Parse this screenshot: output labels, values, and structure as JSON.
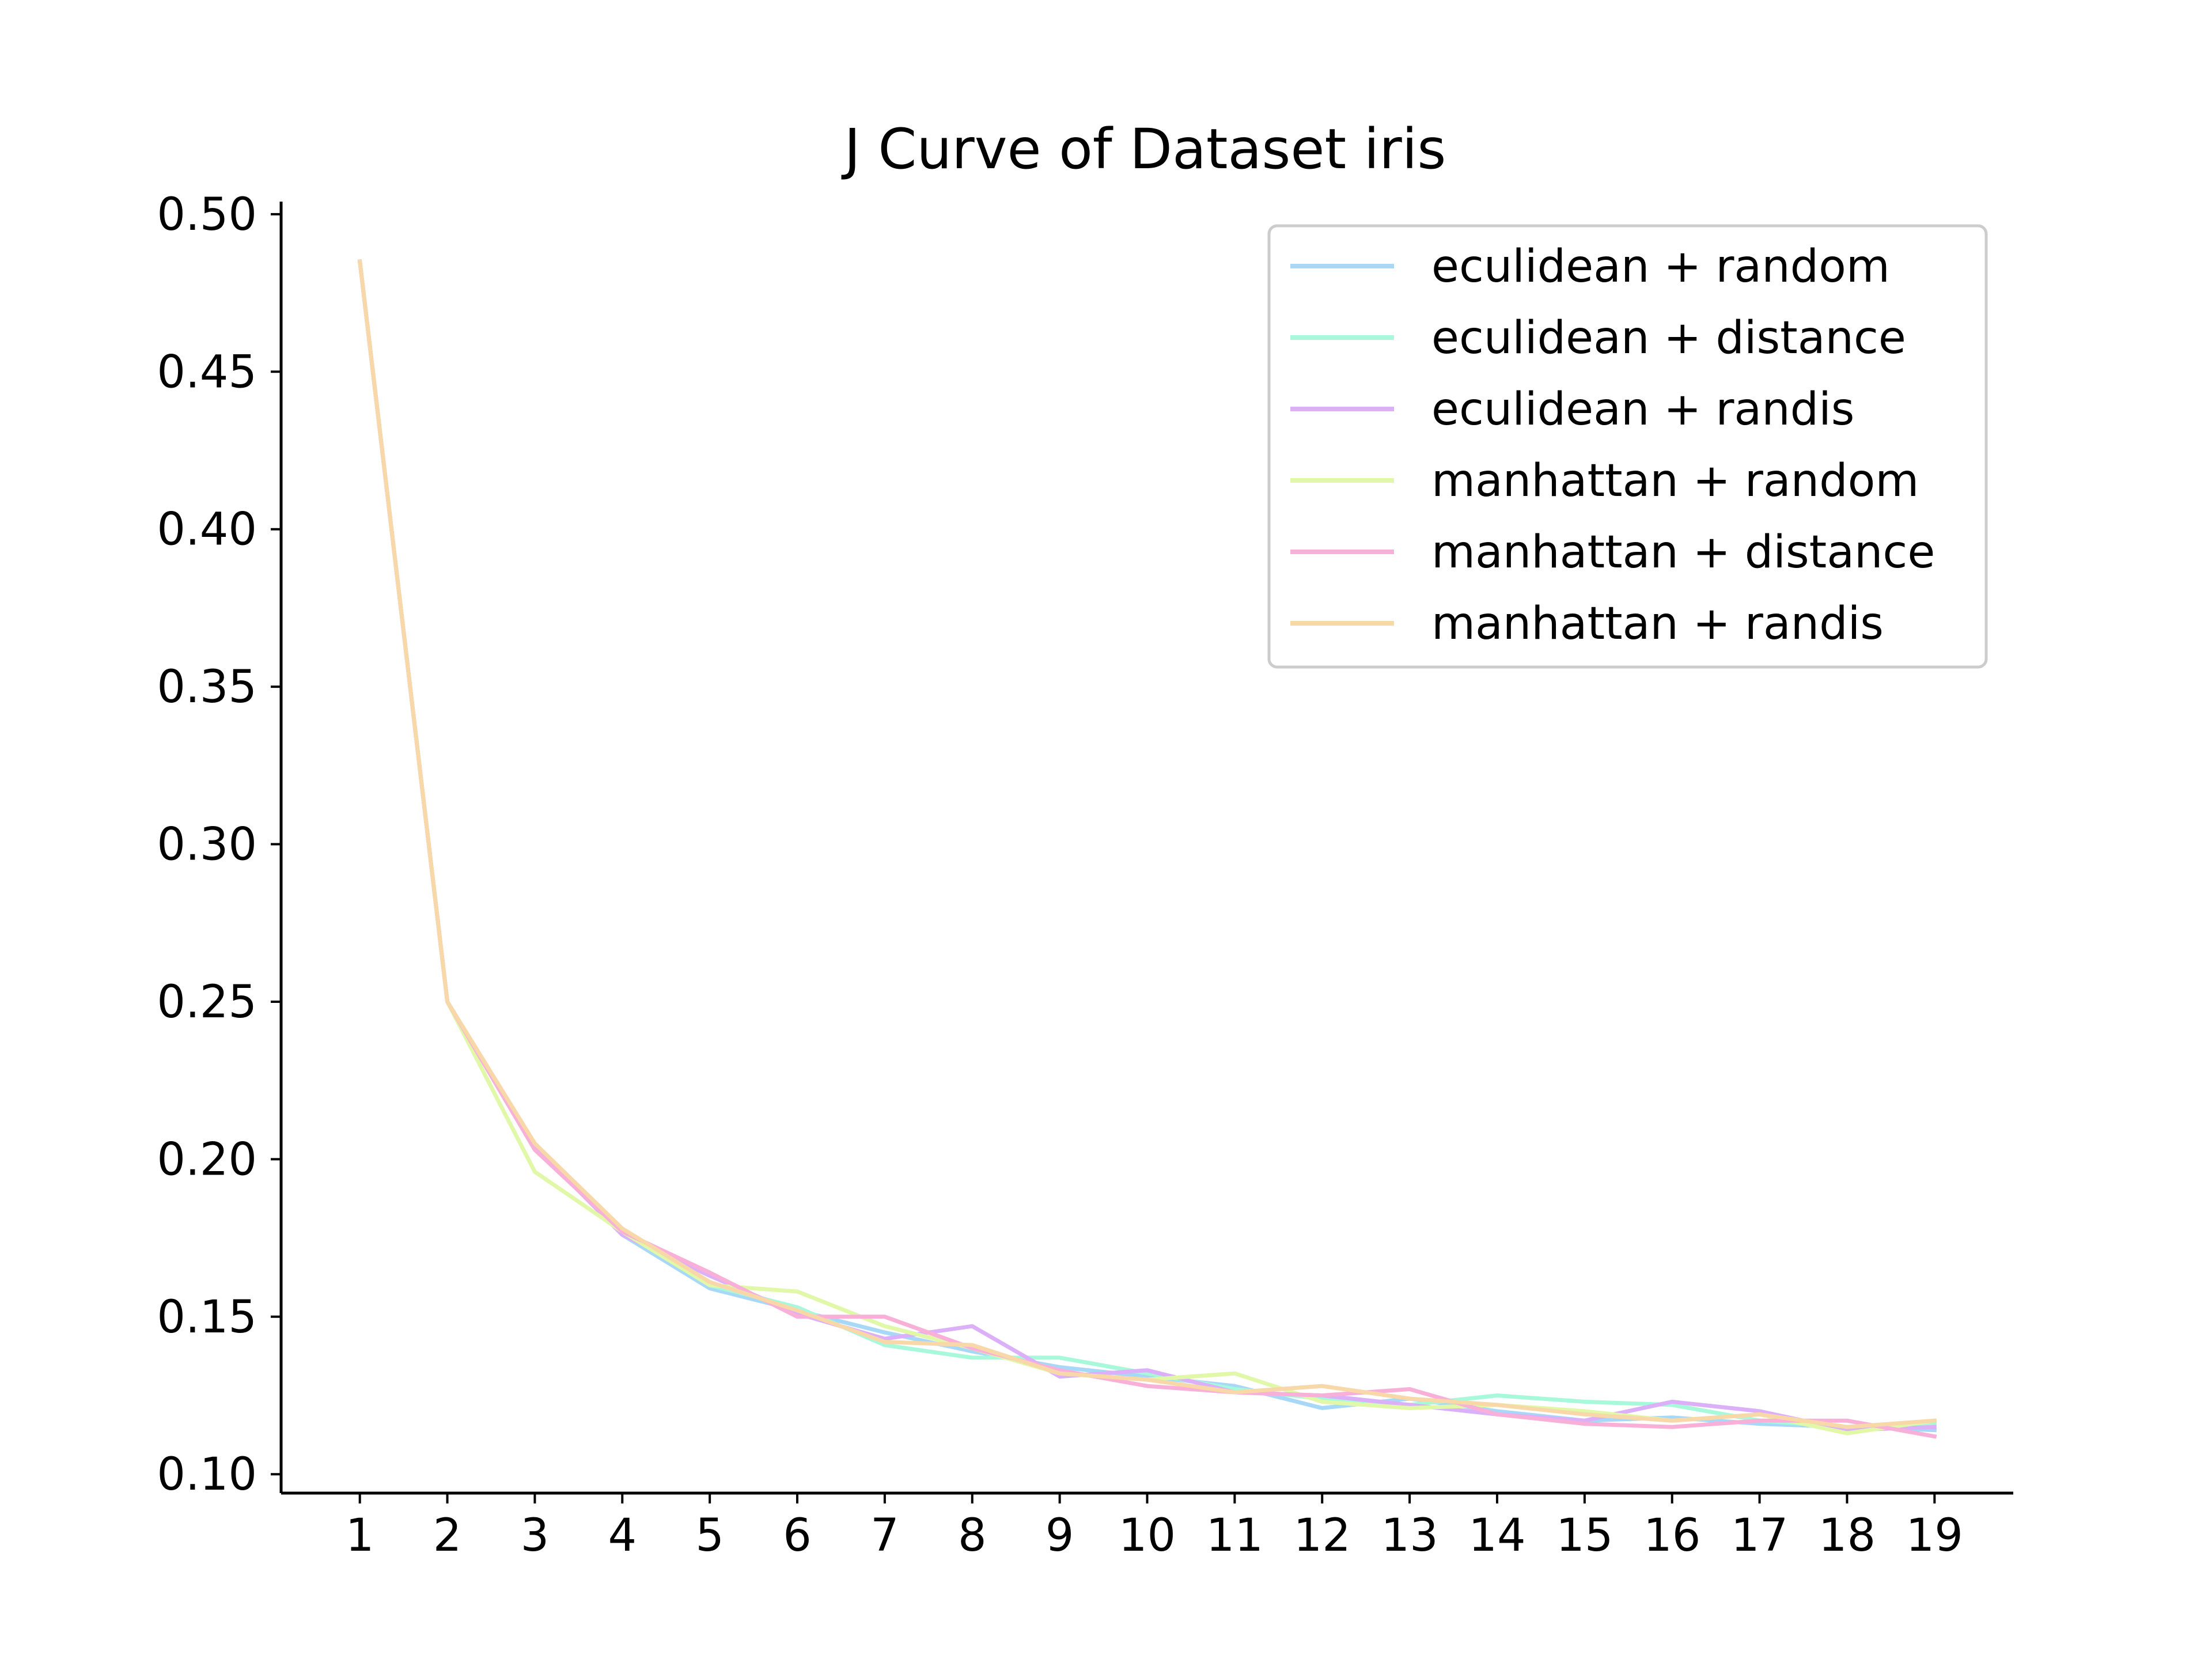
{
  "chart_data": {
    "type": "line",
    "title": "J Curve of Dataset iris",
    "xlabel": "",
    "ylabel": "",
    "x": [
      1,
      2,
      3,
      4,
      5,
      6,
      7,
      8,
      9,
      10,
      11,
      12,
      13,
      14,
      15,
      16,
      17,
      18,
      19
    ],
    "xlim": [
      0.1,
      19.9
    ],
    "ylim": [
      0.094,
      0.504
    ],
    "x_ticks": [
      "1",
      "2",
      "3",
      "4",
      "5",
      "6",
      "7",
      "8",
      "9",
      "10",
      "11",
      "12",
      "13",
      "14",
      "15",
      "16",
      "17",
      "18",
      "19"
    ],
    "y_ticks": [
      0.1,
      0.15,
      0.2,
      0.25,
      0.3,
      0.35,
      0.4,
      0.45,
      0.5
    ],
    "y_tick_labels": [
      "0.10",
      "0.15",
      "0.20",
      "0.25",
      "0.30",
      "0.35",
      "0.40",
      "0.45",
      "0.50"
    ],
    "grid": false,
    "legend_position": "top-right",
    "series": [
      {
        "name": "eculidean + random",
        "color": "#a8d8f8",
        "values": [
          0.485,
          0.25,
          0.204,
          0.176,
          0.159,
          0.152,
          0.145,
          0.139,
          0.134,
          0.131,
          0.128,
          0.121,
          0.124,
          0.12,
          0.117,
          0.118,
          0.116,
          0.115,
          0.114
        ]
      },
      {
        "name": "eculidean + distance",
        "color": "#a8f8dc",
        "values": [
          0.485,
          0.25,
          0.203,
          0.178,
          0.16,
          0.153,
          0.141,
          0.137,
          0.137,
          0.132,
          0.127,
          0.124,
          0.122,
          0.125,
          0.123,
          0.122,
          0.117,
          0.115,
          0.116
        ]
      },
      {
        "name": "eculidean + randis",
        "color": "#dcb0f8",
        "values": [
          0.485,
          0.25,
          0.204,
          0.176,
          0.163,
          0.151,
          0.143,
          0.147,
          0.131,
          0.133,
          0.126,
          0.125,
          0.122,
          0.119,
          0.117,
          0.123,
          0.12,
          0.114,
          0.115
        ]
      },
      {
        "name": "manhattan + random",
        "color": "#e0f8a8",
        "values": [
          0.485,
          0.25,
          0.196,
          0.177,
          0.16,
          0.158,
          0.147,
          0.14,
          0.132,
          0.13,
          0.132,
          0.123,
          0.121,
          0.122,
          0.12,
          0.117,
          0.119,
          0.113,
          0.117
        ]
      },
      {
        "name": "manhattan + distance",
        "color": "#f8b0d8",
        "values": [
          0.485,
          0.25,
          0.203,
          0.177,
          0.164,
          0.15,
          0.15,
          0.14,
          0.133,
          0.128,
          0.126,
          0.125,
          0.127,
          0.119,
          0.116,
          0.115,
          0.117,
          0.117,
          0.112
        ]
      },
      {
        "name": "manhattan + randis",
        "color": "#f8d8a8",
        "values": [
          0.485,
          0.25,
          0.205,
          0.178,
          0.161,
          0.152,
          0.142,
          0.141,
          0.132,
          0.13,
          0.126,
          0.128,
          0.124,
          0.122,
          0.119,
          0.117,
          0.119,
          0.115,
          0.117
        ]
      }
    ]
  }
}
